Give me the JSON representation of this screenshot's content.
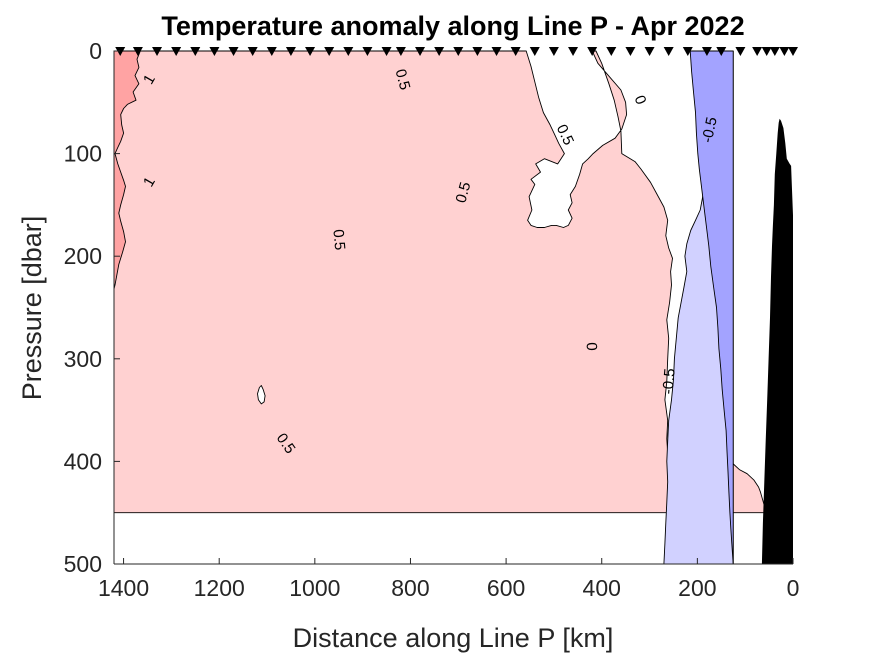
{
  "chart_data": {
    "type": "filled-contour",
    "title": "Temperature anomaly along Line P - Apr 2022",
    "xlabel": "Distance along Line P [km]",
    "ylabel": "Pressure [dbar]",
    "xlim": [
      1420,
      0
    ],
    "ylim": [
      500,
      0
    ],
    "x_reversed": true,
    "y_reversed": true,
    "xticks": [
      1400,
      1200,
      1000,
      800,
      600,
      400,
      200,
      0
    ],
    "xtick_labels": [
      "1400",
      "1200",
      "1000",
      "800",
      "600",
      "400",
      "200",
      "0"
    ],
    "yticks": [
      0,
      100,
      200,
      300,
      400,
      500
    ],
    "ytick_labels": [
      "0",
      "100",
      "200",
      "300",
      "400",
      "500"
    ],
    "station_distances_km": [
      1407,
      1370,
      1330,
      1290,
      1250,
      1210,
      1170,
      1130,
      1090,
      1050,
      1010,
      970,
      930,
      890,
      850,
      820,
      780,
      740,
      700,
      660,
      620,
      580,
      540,
      500,
      460,
      420,
      380,
      340,
      300,
      260,
      220,
      180,
      150,
      110,
      75,
      55,
      38,
      18,
      0
    ],
    "contour_levels": [
      -0.5,
      0,
      0.5,
      1
    ],
    "level_colors": {
      "above_1": "#ffa3a3",
      "from_0.5_to_1": "#ffd1d1",
      "from_0_to_0.5": "#ffffff",
      "from_-0.5_to_0": "#d1d1ff",
      "below_-0.5": "#a3a3ff",
      "no_data": "#ffffff",
      "bathymetry": "#000000"
    },
    "regions": [
      {
        "level": "from_0.5_to_1",
        "points": [
          [
            1420,
            0
          ],
          [
            558,
            0
          ],
          [
            548,
            15
          ],
          [
            540,
            30
          ],
          [
            532,
            45
          ],
          [
            522,
            60
          ],
          [
            508,
            72
          ],
          [
            498,
            82
          ],
          [
            490,
            90
          ],
          [
            478,
            100
          ],
          [
            492,
            110
          ],
          [
            520,
            105
          ],
          [
            538,
            110
          ],
          [
            528,
            118
          ],
          [
            548,
            125
          ],
          [
            540,
            130
          ],
          [
            552,
            142
          ],
          [
            546,
            155
          ],
          [
            555,
            165
          ],
          [
            548,
            170
          ],
          [
            535,
            172
          ],
          [
            520,
            172
          ],
          [
            505,
            170
          ],
          [
            495,
            170
          ],
          [
            480,
            172
          ],
          [
            470,
            170
          ],
          [
            462,
            163
          ],
          [
            470,
            155
          ],
          [
            462,
            148
          ],
          [
            466,
            140
          ],
          [
            455,
            132
          ],
          [
            446,
            120
          ],
          [
            440,
            110
          ],
          [
            428,
            105
          ],
          [
            418,
            100
          ],
          [
            398,
            92
          ],
          [
            372,
            85
          ],
          [
            358,
            76
          ],
          [
            348,
            62
          ],
          [
            350,
            50
          ],
          [
            360,
            38
          ],
          [
            384,
            25
          ],
          [
            408,
            12
          ],
          [
            420,
            0
          ],
          [
            412,
            0
          ],
          [
            400,
            12
          ],
          [
            385,
            32
          ],
          [
            374,
            48
          ],
          [
            366,
            64
          ],
          [
            360,
            78
          ],
          [
            358,
            100
          ],
          [
            330,
            108
          ],
          [
            318,
            115
          ],
          [
            298,
            128
          ],
          [
            284,
            140
          ],
          [
            270,
            152
          ],
          [
            262,
            165
          ],
          [
            266,
            180
          ],
          [
            260,
            192
          ],
          [
            252,
            202
          ],
          [
            256,
            215
          ],
          [
            254,
            228
          ],
          [
            258,
            245
          ],
          [
            264,
            262
          ],
          [
            260,
            280
          ],
          [
            262,
            300
          ],
          [
            264,
            322
          ],
          [
            268,
            340
          ],
          [
            262,
            360
          ],
          [
            264,
            378
          ],
          [
            262,
            392
          ],
          [
            248,
            392
          ],
          [
            232,
            390
          ],
          [
            222,
            385
          ],
          [
            214,
            378
          ],
          [
            206,
            370
          ],
          [
            196,
            360
          ],
          [
            184,
            356
          ],
          [
            172,
            355
          ],
          [
            164,
            358
          ],
          [
            154,
            365
          ],
          [
            148,
            375
          ],
          [
            146,
            385
          ],
          [
            138,
            395
          ],
          [
            126,
            402
          ],
          [
            112,
            408
          ],
          [
            96,
            412
          ],
          [
            82,
            418
          ],
          [
            72,
            425
          ],
          [
            68,
            430
          ],
          [
            62,
            440
          ],
          [
            56,
            450
          ],
          [
            1420,
            450
          ]
        ]
      },
      {
        "level": "from_0_to_0.5",
        "points": [
          [
            1112,
            326
          ],
          [
            1108,
            330
          ],
          [
            1104,
            336
          ],
          [
            1106,
            342
          ],
          [
            1112,
            344
          ],
          [
            1118,
            340
          ],
          [
            1120,
            334
          ],
          [
            1116,
            328
          ]
        ]
      },
      {
        "level": "above_1",
        "points": [
          [
            1420,
            0
          ],
          [
            1365,
            0
          ],
          [
            1372,
            8
          ],
          [
            1368,
            16
          ],
          [
            1376,
            24
          ],
          [
            1368,
            32
          ],
          [
            1380,
            40
          ],
          [
            1374,
            48
          ],
          [
            1392,
            52
          ],
          [
            1400,
            56
          ],
          [
            1406,
            62
          ],
          [
            1404,
            72
          ],
          [
            1400,
            80
          ],
          [
            1406,
            88
          ],
          [
            1412,
            94
          ],
          [
            1418,
            100
          ],
          [
            1412,
            110
          ],
          [
            1406,
            118
          ],
          [
            1400,
            126
          ],
          [
            1396,
            132
          ],
          [
            1400,
            140
          ],
          [
            1406,
            150
          ],
          [
            1410,
            158
          ],
          [
            1406,
            166
          ],
          [
            1400,
            176
          ],
          [
            1396,
            186
          ],
          [
            1402,
            196
          ],
          [
            1410,
            208
          ],
          [
            1414,
            218
          ],
          [
            1418,
            228
          ],
          [
            1420,
            232
          ]
        ]
      },
      {
        "level": "from_-0.5_to_0",
        "points": [
          [
            125,
            0
          ],
          [
            162,
            0
          ],
          [
            156,
            10
          ],
          [
            158,
            22
          ],
          [
            154,
            32
          ],
          [
            150,
            42
          ],
          [
            156,
            52
          ],
          [
            162,
            62
          ],
          [
            168,
            72
          ],
          [
            174,
            82
          ],
          [
            178,
            96
          ],
          [
            182,
            110
          ],
          [
            185,
            125
          ],
          [
            188,
            140
          ],
          [
            194,
            155
          ],
          [
            204,
            165
          ],
          [
            214,
            175
          ],
          [
            222,
            188
          ],
          [
            226,
            200
          ],
          [
            222,
            215
          ],
          [
            228,
            230
          ],
          [
            234,
            245
          ],
          [
            240,
            260
          ],
          [
            244,
            280
          ],
          [
            248,
            300
          ],
          [
            250,
            320
          ],
          [
            254,
            340
          ],
          [
            260,
            360
          ],
          [
            262,
            380
          ],
          [
            264,
            400
          ],
          [
            262,
            420
          ],
          [
            264,
            440
          ],
          [
            266,
            460
          ],
          [
            268,
            480
          ],
          [
            270,
            500
          ],
          [
            125,
            500
          ]
        ]
      },
      {
        "level": "below_-0.5",
        "points": [
          [
            125,
            0
          ],
          [
            215,
            0
          ],
          [
            212,
            20
          ],
          [
            208,
            40
          ],
          [
            204,
            60
          ],
          [
            202,
            80
          ],
          [
            199,
            100
          ],
          [
            196,
            115
          ],
          [
            192,
            130
          ],
          [
            188,
            145
          ],
          [
            184,
            160
          ],
          [
            180,
            175
          ],
          [
            176,
            190
          ],
          [
            172,
            210
          ],
          [
            166,
            230
          ],
          [
            160,
            250
          ],
          [
            157,
            270
          ],
          [
            155,
            290
          ],
          [
            151,
            310
          ],
          [
            148,
            330
          ],
          [
            144,
            350
          ],
          [
            140,
            370
          ],
          [
            138,
            390
          ],
          [
            136,
            410
          ],
          [
            134,
            430
          ],
          [
            132,
            450
          ],
          [
            130,
            465
          ],
          [
            128,
            480
          ],
          [
            125,
            500
          ]
        ]
      },
      {
        "level": "bathymetry",
        "points": [
          [
            65,
            500
          ],
          [
            63,
            460
          ],
          [
            60,
            420
          ],
          [
            57,
            380
          ],
          [
            54,
            340
          ],
          [
            51,
            300
          ],
          [
            48,
            260
          ],
          [
            46,
            220
          ],
          [
            44,
            190
          ],
          [
            42,
            170
          ],
          [
            40,
            150
          ],
          [
            38,
            120
          ],
          [
            35,
            100
          ],
          [
            32,
            80
          ],
          [
            30,
            70
          ],
          [
            28,
            66
          ],
          [
            25,
            68
          ],
          [
            20,
            75
          ],
          [
            16,
            90
          ],
          [
            13,
            105
          ],
          [
            7,
            110
          ],
          [
            4,
            112
          ],
          [
            3,
            125
          ],
          [
            0,
            160
          ],
          [
            0,
            500
          ]
        ]
      }
    ],
    "contour_labels": [
      {
        "text": "1",
        "x": 1345,
        "y": 28,
        "angle": -60
      },
      {
        "text": "1",
        "x": 1345,
        "y": 128,
        "angle": -60
      },
      {
        "text": "0.5",
        "x": 818,
        "y": 28,
        "angle": 75
      },
      {
        "text": "0.5",
        "x": 478,
        "y": 82,
        "angle": 65
      },
      {
        "text": "0.5",
        "x": 688,
        "y": 138,
        "angle": -75
      },
      {
        "text": "0.5",
        "x": 951,
        "y": 184,
        "angle": 85
      },
      {
        "text": "0.5",
        "x": 1062,
        "y": 383,
        "angle": 55
      },
      {
        "text": "0",
        "x": 321,
        "y": 48,
        "angle": 70
      },
      {
        "text": "0",
        "x": 423,
        "y": 288,
        "angle": 88
      },
      {
        "text": "-0.5",
        "x": 173,
        "y": 77,
        "angle": -78
      },
      {
        "text": "-0.5",
        "x": 258,
        "y": 322,
        "angle": -85
      }
    ]
  }
}
